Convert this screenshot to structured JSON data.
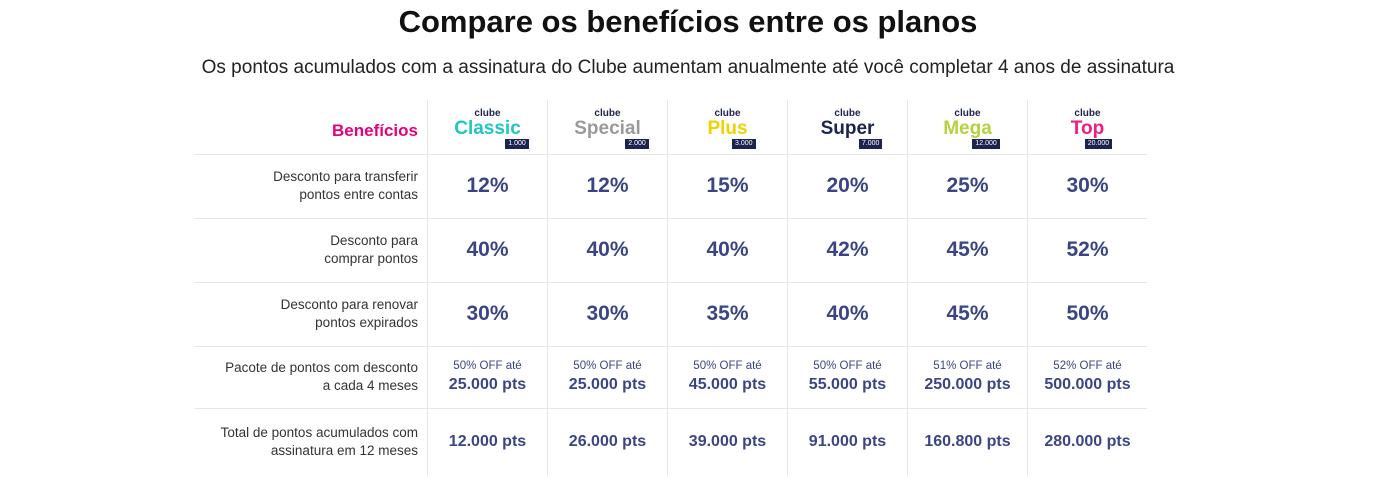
{
  "header": {
    "title": "Compare os benefícios entre os planos",
    "subtitle": "Os pontos acumulados com a assinatura do Clube aumentam anualmente até você completar 4 anos de assinatura"
  },
  "table": {
    "corner": "Benefícios",
    "plans": [
      {
        "prefix": "clube",
        "name": "Classic",
        "badge": "1.000",
        "color": "#1fc7c1"
      },
      {
        "prefix": "clube",
        "name": "Special",
        "badge": "2.000",
        "color": "#9a9a9a"
      },
      {
        "prefix": "clube",
        "name": "Plus",
        "badge": "3.000",
        "color": "#f2d100"
      },
      {
        "prefix": "clube",
        "name": "Super",
        "badge": "7.000",
        "color": "#1d2350"
      },
      {
        "prefix": "clube",
        "name": "Mega",
        "badge": "12.000",
        "color": "#b3d23c"
      },
      {
        "prefix": "clube",
        "name": "Top",
        "badge": "20.000",
        "color": "#ee1c83"
      }
    ],
    "rows": [
      {
        "label": [
          "Desconto para transferir",
          "pontos entre contas"
        ],
        "cells": [
          "12%",
          "12%",
          "15%",
          "20%",
          "25%",
          "30%"
        ]
      },
      {
        "label": [
          "Desconto para",
          "comprar pontos"
        ],
        "cells": [
          "40%",
          "40%",
          "40%",
          "42%",
          "45%",
          "52%"
        ]
      },
      {
        "label": [
          "Desconto para renovar",
          "pontos expirados"
        ],
        "cells": [
          "30%",
          "30%",
          "35%",
          "40%",
          "45%",
          "50%"
        ]
      },
      {
        "label": [
          "Pacote de pontos com  desconto",
          "a cada 4 meses"
        ],
        "cells": [
          {
            "note": "50% OFF até",
            "value": "25.000 pts"
          },
          {
            "note": "50% OFF até",
            "value": "25.000 pts"
          },
          {
            "note": "50% OFF até",
            "value": "45.000 pts"
          },
          {
            "note": "50% OFF até",
            "value": "55.000 pts"
          },
          {
            "note": "51% OFF até",
            "value": "250.000 pts"
          },
          {
            "note": "52% OFF até",
            "value": "500.000 pts"
          }
        ]
      },
      {
        "label": [
          "Total de pontos acumulados com",
          "assinatura em 12 meses"
        ],
        "cells": [
          "12.000 pts",
          "26.000 pts",
          "39.000 pts",
          "91.000 pts",
          "160.800 pts",
          "280.000 pts"
        ]
      }
    ]
  }
}
